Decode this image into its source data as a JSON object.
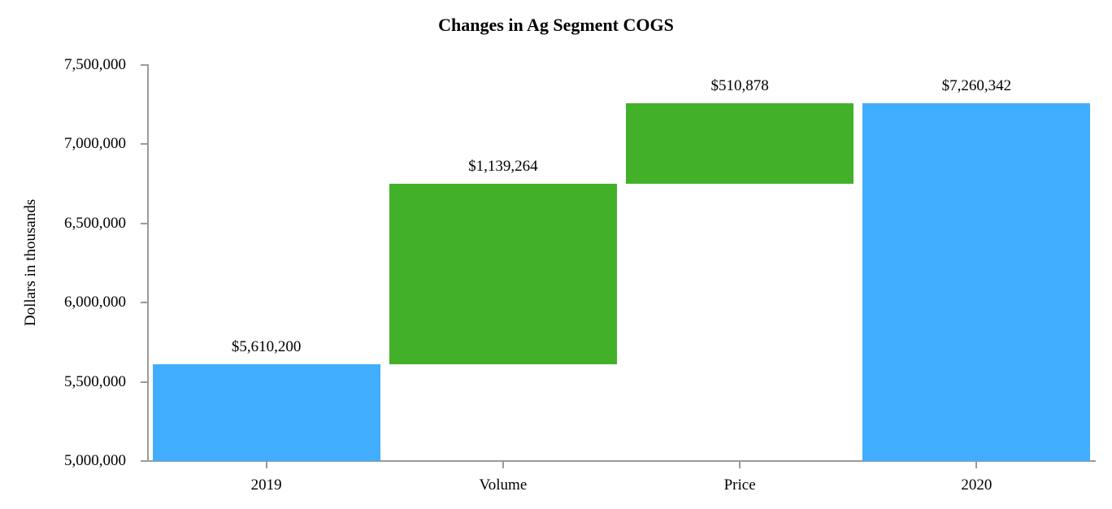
{
  "chart_data": {
    "type": "bar",
    "subtype": "waterfall",
    "title": "Changes in Ag Segment COGS",
    "xlabel": "",
    "ylabel": "Dollars in thousands",
    "ylim": [
      5000000,
      7500000
    ],
    "yticks": [
      5000000,
      5500000,
      6000000,
      6500000,
      7000000,
      7500000
    ],
    "ytick_labels": [
      "5,000,000",
      "5,500,000",
      "6,000,000",
      "6,500,000",
      "7,000,000",
      "7,500,000"
    ],
    "categories": [
      "2019",
      "Volume",
      "Price",
      "2020"
    ],
    "values": [
      5610200,
      1139264,
      510878,
      7260342
    ],
    "bar_bottoms": [
      5000000,
      5610200,
      6749464,
      5000000
    ],
    "bar_tops": [
      5610200,
      6749464,
      7260342,
      7260342
    ],
    "data_labels": [
      "$5,610,200",
      "$1,139,264",
      "$510,878",
      "$7,260,342"
    ],
    "bar_roles": [
      "total",
      "increase",
      "increase",
      "total"
    ],
    "colors": {
      "total": "#41adff",
      "increase": "#43b02a"
    },
    "grid": false,
    "legend": null
  }
}
